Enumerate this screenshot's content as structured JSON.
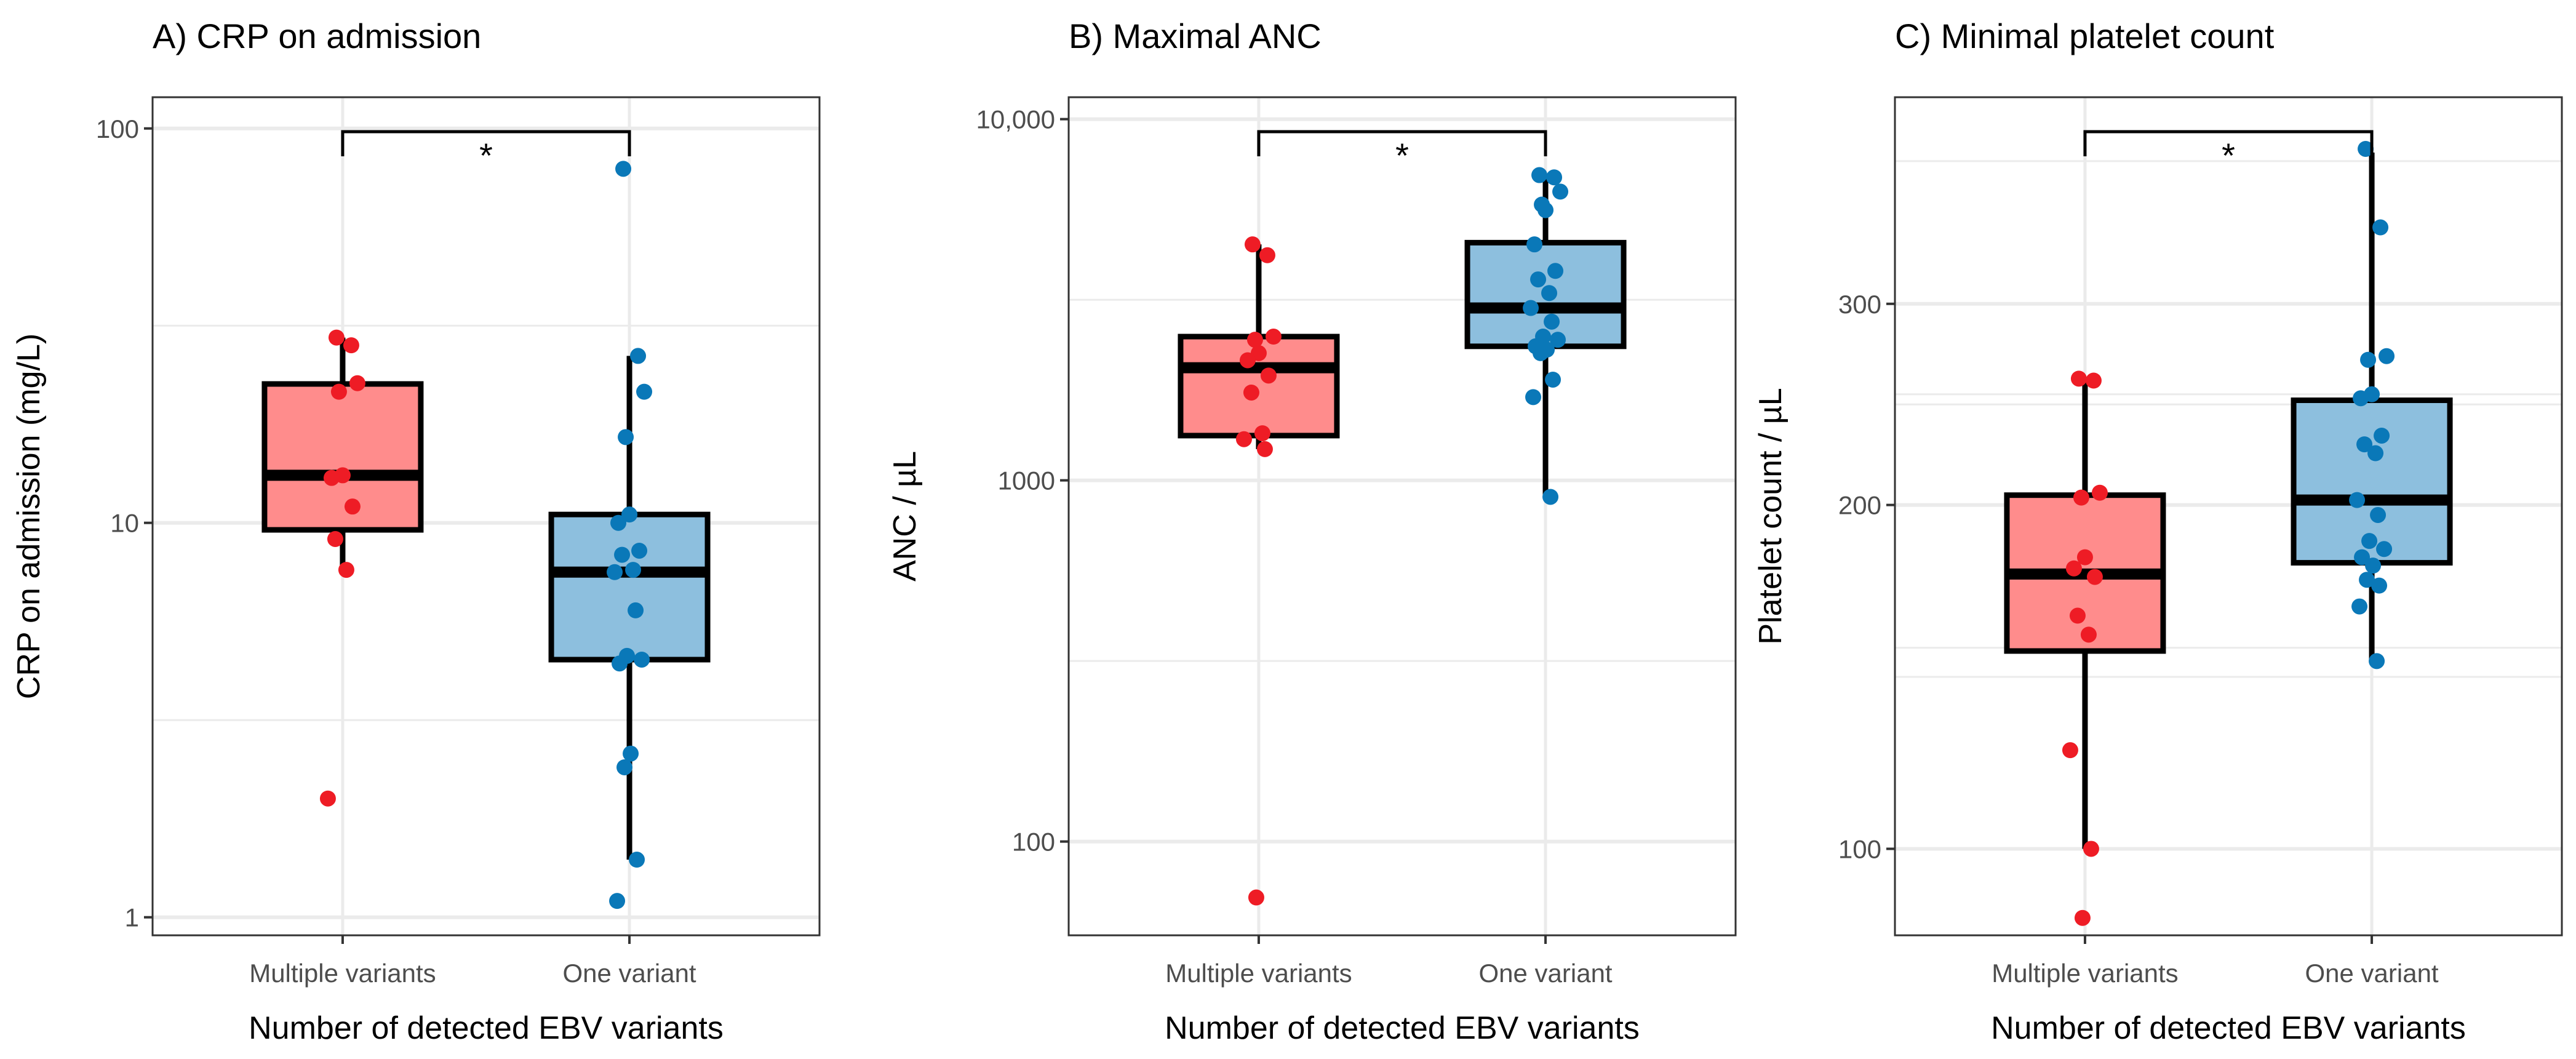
{
  "chart_data": [
    {
      "type": "box",
      "title": "A) CRP on admission",
      "xlabel": "Number of detected EBV variants",
      "ylabel": "CRP on admission (mg/L)",
      "yscale": "log10",
      "ylim": [
        0.9,
        120
      ],
      "yticks": [
        1,
        10,
        100
      ],
      "ytick_labels": [
        "1",
        "10",
        "100"
      ],
      "categories": [
        "Multiple variants",
        "One variant"
      ],
      "significance": {
        "between": [
          "Multiple variants",
          "One variant"
        ],
        "label": "*"
      },
      "groups": [
        {
          "name": "Multiple variants",
          "color": "#ff8c8c",
          "point_color": "#ee1c25",
          "box": {
            "whisker_low": 7.6,
            "q1": 9.6,
            "median": 13.2,
            "q3": 22.5,
            "whisker_high": 29.5
          },
          "points": [
            29.5,
            28.2,
            22.6,
            21.5,
            13.2,
            13.0,
            11.0,
            9.1,
            7.6,
            2.0
          ]
        },
        {
          "name": "One variant",
          "color": "#8dbfde",
          "point_color": "#0a78b8",
          "box": {
            "whisker_low": 1.4,
            "q1": 4.5,
            "median": 7.5,
            "q3": 10.5,
            "whisker_high": 26.5
          },
          "points": [
            79,
            26.5,
            21.5,
            16.5,
            10.5,
            10.0,
            8.5,
            8.3,
            7.6,
            7.5,
            6.0,
            4.6,
            4.5,
            4.4,
            2.6,
            2.4,
            1.4,
            1.1
          ]
        }
      ]
    },
    {
      "type": "box",
      "title": "B) Maximal ANC",
      "xlabel": "Number of detected EBV variants",
      "ylabel": "ANC / µL",
      "yscale": "log10",
      "ylim": [
        55,
        11500
      ],
      "yticks": [
        100,
        1000,
        10000
      ],
      "ytick_labels": [
        "100",
        "1000",
        "10,000"
      ],
      "categories": [
        "Multiple variants",
        "One variant"
      ],
      "significance": {
        "between": [
          "Multiple variants",
          "One variant"
        ],
        "label": "*"
      },
      "groups": [
        {
          "name": "Multiple variants",
          "color": "#ff8c8c",
          "point_color": "#ee1c25",
          "box": {
            "whisker_low": 1220,
            "q1": 1330,
            "median": 2050,
            "q3": 2500,
            "whisker_high": 4500
          },
          "points": [
            4500,
            4200,
            2500,
            2450,
            2250,
            2150,
            1950,
            1750,
            1350,
            1300,
            1220,
            70
          ]
        },
        {
          "name": "One variant",
          "color": "#8dbfde",
          "point_color": "#0a78b8",
          "box": {
            "whisker_low": 900,
            "q1": 2350,
            "median": 3000,
            "q3": 4550,
            "whisker_high": 7000
          },
          "points": [
            7000,
            6900,
            6300,
            5800,
            5600,
            4500,
            3800,
            3600,
            3300,
            3000,
            2750,
            2500,
            2450,
            2350,
            2300,
            2250,
            1900,
            1700,
            900
          ]
        }
      ]
    },
    {
      "type": "box",
      "title": "C) Minimal platelet count",
      "xlabel": "Number of detected EBV variants",
      "ylabel": "Platelet count / µL",
      "yscale": "log10",
      "ylim": [
        84,
        455
      ],
      "yticks": [
        100,
        200,
        300
      ],
      "ytick_labels": [
        "100",
        "200",
        "300"
      ],
      "categories": [
        "Multiple variants",
        "One variant"
      ],
      "significance": {
        "between": [
          "Multiple variants",
          "One variant"
        ],
        "label": "*"
      },
      "groups": [
        {
          "name": "Multiple variants",
          "color": "#ff8c8c",
          "point_color": "#ee1c25",
          "box": {
            "whisker_low": 100,
            "q1": 149,
            "median": 174,
            "q3": 204,
            "whisker_high": 258
          },
          "points": [
            258,
            257,
            205,
            203,
            180,
            176,
            173,
            160,
            154,
            122,
            100,
            87
          ]
        },
        {
          "name": "One variant",
          "color": "#8dbfde",
          "point_color": "#0a78b8",
          "box": {
            "whisker_low": 146,
            "q1": 178,
            "median": 202,
            "q3": 247,
            "whisker_high": 407
          },
          "points": [
            410,
            350,
            270,
            268,
            250,
            248,
            230,
            226,
            222,
            202,
            196,
            186,
            183,
            180,
            177,
            172,
            170,
            163,
            146
          ]
        }
      ]
    }
  ]
}
